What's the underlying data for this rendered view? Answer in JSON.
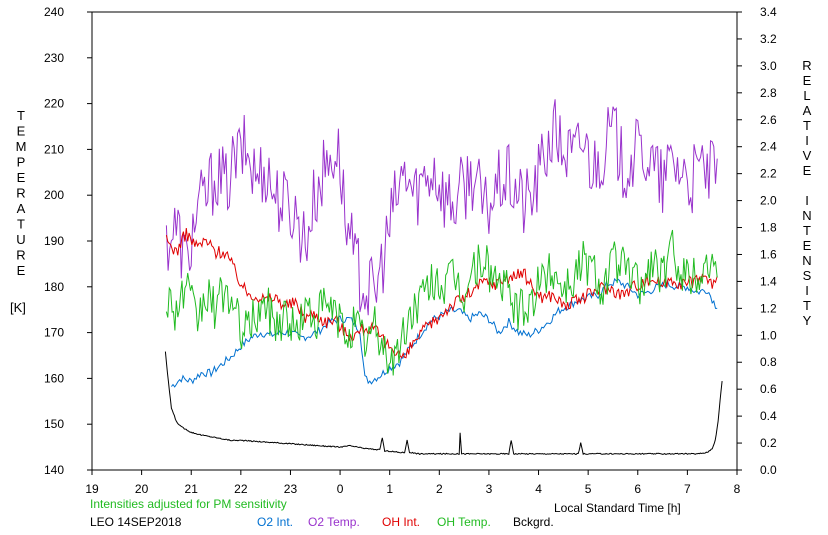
{
  "chart_data": {
    "type": "line",
    "x_label": "Local Standard Time [h]",
    "left_axis_label": "TEMPERATURE",
    "left_axis_unit": "[K]",
    "right_axis_label": "RELATIVE INTENSITY",
    "note": "Intensities adjusted for PM sensitivity",
    "station_date": "LEO 14SEP2018",
    "x_ticks": [
      "19",
      "20",
      "21",
      "22",
      "23",
      "0",
      "1",
      "2",
      "3",
      "4",
      "5",
      "6",
      "7",
      "8"
    ],
    "y_left_ticks": [
      "140",
      "150",
      "160",
      "170",
      "180",
      "190",
      "200",
      "210",
      "220",
      "230",
      "240"
    ],
    "y_right_ticks": [
      "0.0",
      "0.2",
      "0.4",
      "0.6",
      "0.8",
      "1.0",
      "1.2",
      "1.4",
      "1.6",
      "1.8",
      "2.0",
      "2.2",
      "2.4",
      "2.6",
      "2.8",
      "3.0",
      "3.2",
      "3.4"
    ],
    "x_range": [
      19,
      32
    ],
    "y_left_range": [
      140,
      240
    ],
    "y_right_range": [
      0,
      3.4
    ],
    "colors": {
      "o2_int": "#0070d0",
      "o2_temp": "#9933cc",
      "oh_int": "#e00000",
      "oh_temp": "#22bb22",
      "bckgrd": "#000000",
      "note": "#22bb22"
    },
    "series": [
      {
        "name": "O2 Int.",
        "axis": "right",
        "x": [
          20.6,
          20.8,
          21.0,
          21.2,
          21.4,
          21.6,
          21.8,
          22.0,
          22.2,
          22.4,
          22.6,
          22.8,
          23.0,
          23.2,
          23.4,
          23.6,
          23.8,
          24.0,
          24.2,
          24.4,
          24.5,
          24.6,
          24.8,
          25.0,
          25.2,
          25.4,
          25.6,
          25.8,
          26.0,
          26.2,
          26.4,
          26.6,
          26.8,
          27.0,
          27.2,
          27.4,
          27.6,
          27.8,
          28.0,
          28.2,
          28.4,
          28.6,
          28.8,
          29.0,
          29.2,
          29.4,
          29.6,
          29.8,
          30.0,
          30.2,
          30.4,
          30.6,
          30.8,
          31.0,
          31.2,
          31.4,
          31.6
        ],
        "y": [
          0.62,
          0.68,
          0.66,
          0.72,
          0.72,
          0.78,
          0.84,
          0.92,
          0.98,
          1.02,
          1.0,
          1.02,
          1.02,
          0.98,
          1.0,
          1.04,
          1.1,
          1.12,
          1.12,
          1.04,
          0.68,
          0.66,
          0.7,
          0.76,
          0.8,
          0.9,
          1.0,
          1.1,
          1.14,
          1.18,
          1.18,
          1.12,
          1.16,
          1.12,
          1.02,
          1.1,
          1.02,
          1.0,
          1.04,
          1.1,
          1.18,
          1.22,
          1.26,
          1.28,
          1.3,
          1.38,
          1.4,
          1.36,
          1.3,
          1.32,
          1.36,
          1.38,
          1.36,
          1.36,
          1.32,
          1.34,
          1.2
        ]
      },
      {
        "name": "O2 Temp.",
        "axis": "left",
        "x": [
          20.5,
          20.7,
          20.9,
          21.1,
          21.3,
          21.5,
          21.7,
          21.9,
          22.1,
          22.3,
          22.5,
          22.7,
          22.9,
          23.1,
          23.3,
          23.5,
          23.7,
          23.9,
          24.0,
          24.1,
          24.3,
          24.5,
          24.7,
          24.9,
          25.1,
          25.3,
          25.5,
          25.7,
          25.9,
          26.1,
          26.3,
          26.5,
          26.7,
          26.9,
          27.1,
          27.3,
          27.5,
          27.7,
          27.9,
          28.1,
          28.3,
          28.5,
          28.7,
          28.9,
          29.1,
          29.3,
          29.5,
          29.7,
          29.9,
          30.1,
          30.3,
          30.5,
          30.7,
          30.9,
          31.1,
          31.3,
          31.5,
          31.6
        ],
        "y": [
          190,
          193,
          185,
          196,
          200,
          205,
          202,
          208,
          210,
          204,
          206,
          200,
          198,
          196,
          190,
          200,
          206,
          210,
          208,
          195,
          185,
          180,
          178,
          188,
          198,
          205,
          200,
          204,
          206,
          200,
          198,
          202,
          205,
          196,
          200,
          204,
          202,
          198,
          200,
          208,
          214,
          210,
          208,
          212,
          206,
          210,
          214,
          206,
          208,
          210,
          206,
          202,
          208,
          205,
          203,
          206,
          204,
          208
        ]
      },
      {
        "name": "OH Int.",
        "axis": "right",
        "x": [
          20.5,
          20.7,
          20.9,
          21.1,
          21.3,
          21.5,
          21.7,
          21.9,
          22.1,
          22.3,
          22.5,
          22.7,
          22.9,
          23.1,
          23.3,
          23.5,
          23.7,
          23.9,
          24.1,
          24.3,
          24.5,
          24.7,
          24.9,
          25.1,
          25.3,
          25.5,
          25.7,
          25.9,
          26.1,
          26.3,
          26.5,
          26.7,
          26.9,
          27.1,
          27.3,
          27.5,
          27.7,
          27.9,
          28.1,
          28.3,
          28.5,
          28.7,
          28.9,
          29.1,
          29.3,
          29.5,
          29.7,
          29.9,
          30.1,
          30.3,
          30.5,
          30.7,
          30.9,
          31.1,
          31.3,
          31.5,
          31.6
        ],
        "y": [
          1.7,
          1.62,
          1.76,
          1.66,
          1.7,
          1.62,
          1.62,
          1.46,
          1.32,
          1.3,
          1.26,
          1.28,
          1.22,
          1.24,
          1.14,
          1.16,
          1.1,
          1.12,
          1.02,
          1.0,
          1.06,
          1.04,
          0.94,
          0.9,
          0.82,
          0.96,
          1.04,
          1.1,
          1.18,
          1.24,
          1.28,
          1.34,
          1.4,
          1.38,
          1.42,
          1.44,
          1.46,
          1.34,
          1.28,
          1.3,
          1.22,
          1.24,
          1.28,
          1.32,
          1.36,
          1.34,
          1.3,
          1.36,
          1.4,
          1.42,
          1.38,
          1.42,
          1.38,
          1.4,
          1.44,
          1.38,
          1.44
        ]
      },
      {
        "name": "OH Temp.",
        "axis": "left",
        "x": [
          20.5,
          20.7,
          20.9,
          21.1,
          21.3,
          21.5,
          21.7,
          21.9,
          22.1,
          22.3,
          22.5,
          22.7,
          22.9,
          23.1,
          23.3,
          23.5,
          23.7,
          23.9,
          24.1,
          24.3,
          24.5,
          24.7,
          24.9,
          25.1,
          25.3,
          25.5,
          25.7,
          25.9,
          26.1,
          26.3,
          26.5,
          26.7,
          26.9,
          27.1,
          27.3,
          27.5,
          27.7,
          27.9,
          28.1,
          28.3,
          28.5,
          28.7,
          28.9,
          29.1,
          29.3,
          29.5,
          29.7,
          29.9,
          30.1,
          30.3,
          30.5,
          30.7,
          30.9,
          31.1,
          31.3,
          31.5,
          31.6
        ],
        "y": [
          178,
          175,
          180,
          172,
          178,
          175,
          180,
          173,
          170,
          174,
          176,
          172,
          174,
          170,
          175,
          173,
          176,
          174,
          170,
          172,
          168,
          171,
          166,
          164,
          170,
          176,
          178,
          182,
          180,
          182,
          178,
          184,
          186,
          182,
          180,
          176,
          174,
          178,
          182,
          184,
          180,
          182,
          186,
          184,
          180,
          186,
          184,
          182,
          180,
          186,
          182,
          188,
          184,
          182,
          184,
          186,
          182
        ]
      },
      {
        "name": "Bckgrd.",
        "axis": "right",
        "x": [
          20.48,
          20.52,
          20.6,
          20.7,
          20.8,
          21.0,
          21.2,
          21.5,
          21.8,
          22.0,
          22.4,
          22.8,
          23.2,
          23.6,
          24.0,
          24.2,
          24.5,
          24.8,
          24.85,
          24.9,
          25.0,
          25.2,
          25.3,
          25.35,
          25.4,
          25.6,
          26.0,
          26.4,
          26.42,
          26.45,
          26.8,
          27.2,
          27.4,
          27.45,
          27.5,
          27.8,
          28.2,
          28.8,
          28.85,
          28.9,
          29.4,
          29.8,
          30.2,
          30.6,
          31.0,
          31.2,
          31.4,
          31.5,
          31.56,
          31.62,
          31.66,
          31.7
        ],
        "y": [
          0.88,
          0.72,
          0.46,
          0.36,
          0.32,
          0.28,
          0.26,
          0.24,
          0.22,
          0.22,
          0.21,
          0.2,
          0.19,
          0.18,
          0.17,
          0.18,
          0.16,
          0.15,
          0.24,
          0.14,
          0.14,
          0.13,
          0.13,
          0.22,
          0.13,
          0.12,
          0.12,
          0.12,
          0.28,
          0.12,
          0.12,
          0.12,
          0.12,
          0.22,
          0.12,
          0.12,
          0.12,
          0.12,
          0.2,
          0.12,
          0.12,
          0.12,
          0.12,
          0.12,
          0.12,
          0.12,
          0.13,
          0.16,
          0.22,
          0.36,
          0.52,
          0.66
        ]
      }
    ]
  }
}
